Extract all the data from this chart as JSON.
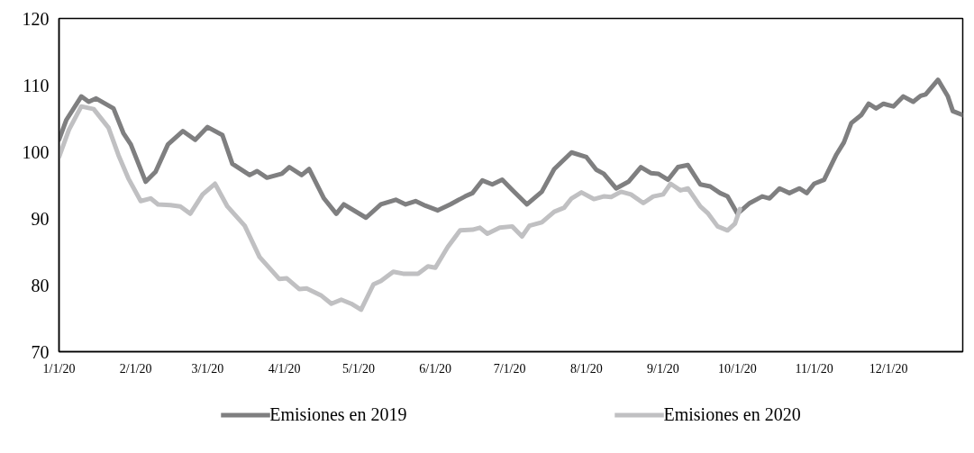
{
  "chart_data": {
    "type": "line",
    "line_style": "solid",
    "marker": "none",
    "grid": false,
    "legend": "bottom",
    "xlim": [
      "2020-01-01",
      "2020-12-31"
    ],
    "xticks": [
      {
        "value": "2020-01-01",
        "label": "1/1/20"
      },
      {
        "value": "2020-02-01",
        "label": "2/1/20"
      },
      {
        "value": "2020-03-01",
        "label": "3/1/20"
      },
      {
        "value": "2020-04-01",
        "label": "4/1/20"
      },
      {
        "value": "2020-05-01",
        "label": "5/1/20"
      },
      {
        "value": "2020-06-01",
        "label": "6/1/20"
      },
      {
        "value": "2020-07-01",
        "label": "7/1/20"
      },
      {
        "value": "2020-08-01",
        "label": "8/1/20"
      },
      {
        "value": "2020-09-01",
        "label": "9/1/20"
      },
      {
        "value": "2020-10-01",
        "label": "10/1/20"
      },
      {
        "value": "2020-11-01",
        "label": "11/1/20"
      },
      {
        "value": "2020-12-01",
        "label": "12/1/20"
      }
    ],
    "ylim": [
      70,
      120
    ],
    "yticks": [
      70,
      80,
      90,
      100,
      110,
      120
    ],
    "series": [
      {
        "name": "Emisiones en 2019",
        "color": "#7f7f80",
        "x": [
          "2020-01-01",
          "2020-01-04",
          "2020-01-10",
          "2020-01-13",
          "2020-01-16",
          "2020-01-23",
          "2020-01-27",
          "2020-01-30",
          "2020-02-05",
          "2020-02-09",
          "2020-02-14",
          "2020-02-20",
          "2020-02-25",
          "2020-03-01",
          "2020-03-07",
          "2020-03-11",
          "2020-03-18",
          "2020-03-21",
          "2020-03-25",
          "2020-03-31",
          "2020-04-03",
          "2020-04-08",
          "2020-04-11",
          "2020-04-17",
          "2020-04-22",
          "2020-04-25",
          "2020-05-04",
          "2020-05-10",
          "2020-05-16",
          "2020-05-20",
          "2020-05-24",
          "2020-05-28",
          "2020-06-02",
          "2020-06-07",
          "2020-06-13",
          "2020-06-16",
          "2020-06-20",
          "2020-06-24",
          "2020-06-28",
          "2020-07-02",
          "2020-07-08",
          "2020-07-14",
          "2020-07-19",
          "2020-07-26",
          "2020-08-01",
          "2020-08-05",
          "2020-08-08",
          "2020-08-13",
          "2020-08-18",
          "2020-08-23",
          "2020-08-27",
          "2020-08-30",
          "2020-09-03",
          "2020-09-07",
          "2020-09-11",
          "2020-09-16",
          "2020-09-20",
          "2020-09-24",
          "2020-09-27",
          "2020-10-01",
          "2020-10-06",
          "2020-10-11",
          "2020-10-14",
          "2020-10-18",
          "2020-10-22",
          "2020-10-26",
          "2020-10-29",
          "2020-11-01",
          "2020-11-05",
          "2020-11-10",
          "2020-11-13",
          "2020-11-16",
          "2020-11-20",
          "2020-11-23",
          "2020-11-26",
          "2020-11-29",
          "2020-12-03",
          "2020-12-07",
          "2020-12-11",
          "2020-12-14",
          "2020-12-16",
          "2020-12-21",
          "2020-12-25",
          "2020-12-27",
          "2020-12-31"
        ],
        "values": [
          101.8,
          104.8,
          108.3,
          107.5,
          108.0,
          106.5,
          102.8,
          101.1,
          95.5,
          97.0,
          101.1,
          103.1,
          101.8,
          103.7,
          102.5,
          98.2,
          96.5,
          97.1,
          96.1,
          96.7,
          97.7,
          96.5,
          97.4,
          93.0,
          90.7,
          92.1,
          90.1,
          92.1,
          92.8,
          92.1,
          92.6,
          91.9,
          91.2,
          92.1,
          93.3,
          93.8,
          95.7,
          95.1,
          95.8,
          94.3,
          92.1,
          94.0,
          97.4,
          99.9,
          99.2,
          97.3,
          96.7,
          94.5,
          95.5,
          97.7,
          96.8,
          96.7,
          95.8,
          97.7,
          98.0,
          95.1,
          94.8,
          93.8,
          93.3,
          90.7,
          92.3,
          93.3,
          93.0,
          94.5,
          93.8,
          94.5,
          93.8,
          95.2,
          95.8,
          99.6,
          101.4,
          104.3,
          105.5,
          107.2,
          106.5,
          107.2,
          106.8,
          108.3,
          107.5,
          108.4,
          108.6,
          110.8,
          108.3,
          106.1,
          105.5
        ]
      },
      {
        "name": "Emisiones en 2020",
        "color": "#c0c0c2",
        "x": [
          "2020-01-01",
          "2020-01-05",
          "2020-01-10",
          "2020-01-15",
          "2020-01-21",
          "2020-01-25",
          "2020-01-29",
          "2020-02-03",
          "2020-02-07",
          "2020-02-10",
          "2020-02-15",
          "2020-02-19",
          "2020-02-23",
          "2020-02-28",
          "2020-03-04",
          "2020-03-09",
          "2020-03-16",
          "2020-03-22",
          "2020-03-30",
          "2020-04-02",
          "2020-04-07",
          "2020-04-10",
          "2020-04-16",
          "2020-04-20",
          "2020-04-24",
          "2020-04-28",
          "2020-05-02",
          "2020-05-07",
          "2020-05-10",
          "2020-05-15",
          "2020-05-19",
          "2020-05-25",
          "2020-05-29",
          "2020-06-01",
          "2020-06-06",
          "2020-06-11",
          "2020-06-16",
          "2020-06-19",
          "2020-06-22",
          "2020-06-27",
          "2020-07-02",
          "2020-07-06",
          "2020-07-09",
          "2020-07-14",
          "2020-07-19",
          "2020-07-23",
          "2020-07-26",
          "2020-07-30",
          "2020-08-04",
          "2020-08-08",
          "2020-08-11",
          "2020-08-15",
          "2020-08-19",
          "2020-08-24",
          "2020-08-28",
          "2020-09-01",
          "2020-09-04",
          "2020-09-08",
          "2020-09-11",
          "2020-09-16",
          "2020-09-19",
          "2020-09-23",
          "2020-09-27",
          "2020-09-30",
          "2020-10-02"
        ],
        "values": [
          99.2,
          103.3,
          106.8,
          106.4,
          103.6,
          99.5,
          96.0,
          92.6,
          93.0,
          92.1,
          92.0,
          91.8,
          90.7,
          93.6,
          95.2,
          91.8,
          88.9,
          84.2,
          80.9,
          81.0,
          79.4,
          79.5,
          78.4,
          77.2,
          77.8,
          77.2,
          76.3,
          80.1,
          80.6,
          82.0,
          81.7,
          81.7,
          82.8,
          82.6,
          85.7,
          88.2,
          88.3,
          88.6,
          87.7,
          88.6,
          88.8,
          87.3,
          88.9,
          89.4,
          91.0,
          91.6,
          93.0,
          93.9,
          92.9,
          93.3,
          93.2,
          94.0,
          93.6,
          92.3,
          93.3,
          93.6,
          95.2,
          94.2,
          94.5,
          91.8,
          90.8,
          88.8,
          88.2,
          89.2,
          91.4
        ]
      }
    ]
  }
}
